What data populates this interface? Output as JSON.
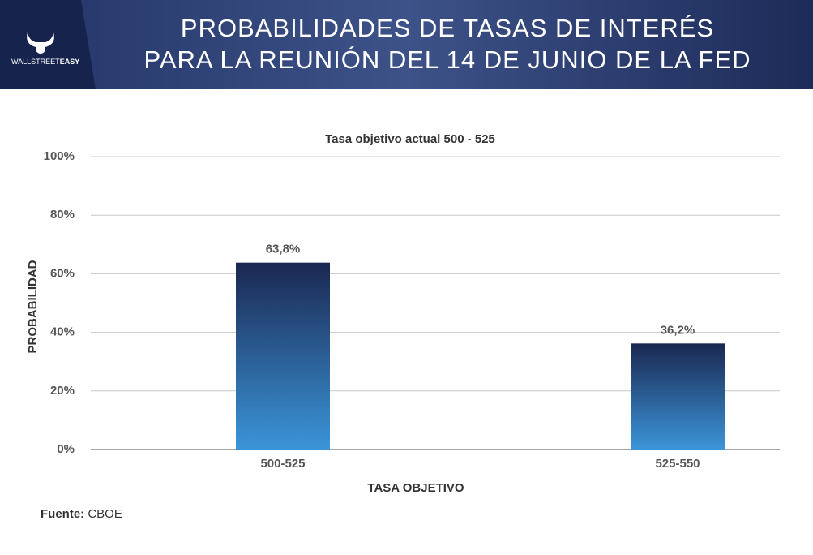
{
  "header": {
    "title": [
      "PROBABILIDADES DE TASAS DE INTERÉS",
      "PARA LA REUNIÓN DEL 14 DE JUNIO DE LA FED"
    ],
    "logo": [
      "WALLSTREET",
      "EASY"
    ]
  },
  "chart_data": {
    "type": "bar",
    "title": "Tasa objetivo actual 500 - 525",
    "categories": [
      "500-525",
      "525-550"
    ],
    "values": [
      63.8,
      36.2
    ],
    "value_labels": [
      "63,8%",
      "36,2%"
    ],
    "color_top": "#1a2751",
    "color_bottom": "#3b95d8",
    "xlabel": "TASA OBJETIVO",
    "ylabel": "PROBABILIDAD",
    "ylim": [
      0,
      100
    ],
    "yticks": [
      {
        "value": 0,
        "label": "0%"
      },
      {
        "value": 20,
        "label": "20%"
      },
      {
        "value": 40,
        "label": "40%"
      },
      {
        "value": 60,
        "label": "60%"
      },
      {
        "value": 80,
        "label": "80%"
      },
      {
        "value": 100,
        "label": "100%"
      }
    ],
    "grid": true
  },
  "source": {
    "label": "Fuente:",
    "value": "CBOE"
  }
}
